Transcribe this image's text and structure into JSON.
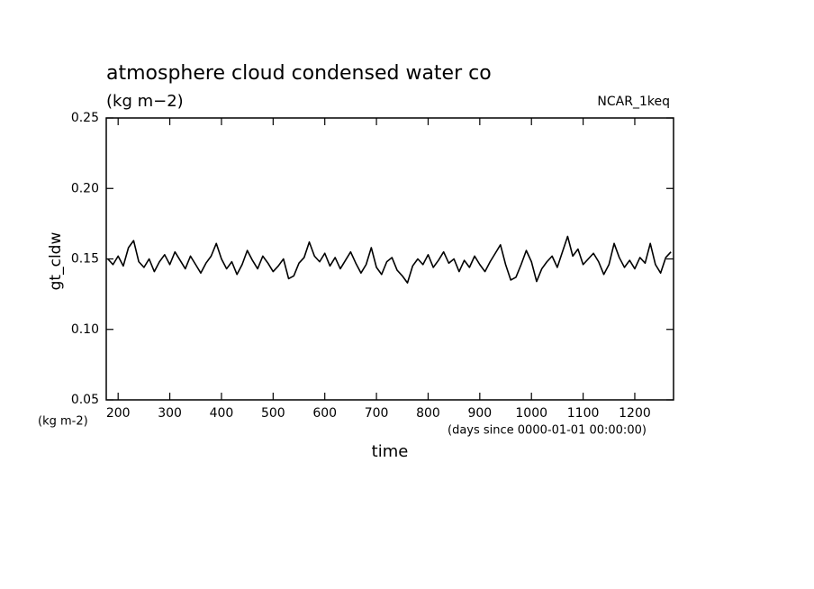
{
  "chart_data": {
    "type": "line",
    "title": "atmosphere cloud condensed water co",
    "subtitle": "(kg m−2)",
    "annotation": "NCAR_1keq",
    "ylabel": "gt_cldw",
    "xlabel": "time",
    "yunits": "(kg m-2)",
    "xunits": "(days since 0000-01-01 00:00:00)",
    "xlim": [
      177,
      1275
    ],
    "ylim": [
      0.05,
      0.25
    ],
    "xticks": [
      200,
      300,
      400,
      500,
      600,
      700,
      800,
      900,
      1000,
      1100,
      1200
    ],
    "yticks": [
      0.05,
      {
        "value": 0.1,
        "label": "0.10"
      },
      0.15,
      {
        "value": 0.2,
        "label": "0.20"
      },
      0.25
    ],
    "x": [
      180,
      190,
      200,
      210,
      220,
      230,
      240,
      250,
      260,
      270,
      280,
      290,
      300,
      310,
      320,
      330,
      340,
      350,
      360,
      370,
      380,
      390,
      400,
      410,
      420,
      430,
      440,
      450,
      460,
      470,
      480,
      490,
      500,
      510,
      520,
      530,
      540,
      550,
      560,
      570,
      580,
      590,
      600,
      610,
      620,
      630,
      640,
      650,
      660,
      670,
      680,
      690,
      700,
      710,
      720,
      730,
      740,
      750,
      760,
      770,
      780,
      790,
      800,
      810,
      820,
      830,
      840,
      850,
      860,
      870,
      880,
      890,
      900,
      910,
      920,
      930,
      940,
      950,
      960,
      970,
      980,
      990,
      1000,
      1010,
      1020,
      1030,
      1040,
      1050,
      1060,
      1070,
      1080,
      1090,
      1100,
      1110,
      1120,
      1130,
      1140,
      1150,
      1160,
      1170,
      1180,
      1190,
      1200,
      1210,
      1220,
      1230,
      1240,
      1250,
      1260,
      1270
    ],
    "series": [
      {
        "color": "#000000",
        "values": [
          0.15,
          0.146,
          0.152,
          0.145,
          0.158,
          0.163,
          0.148,
          0.144,
          0.15,
          0.141,
          0.148,
          0.153,
          0.146,
          0.155,
          0.149,
          0.143,
          0.152,
          0.146,
          0.14,
          0.147,
          0.152,
          0.161,
          0.15,
          0.143,
          0.148,
          0.139,
          0.146,
          0.156,
          0.149,
          0.143,
          0.152,
          0.147,
          0.141,
          0.145,
          0.15,
          0.136,
          0.138,
          0.147,
          0.151,
          0.162,
          0.152,
          0.148,
          0.154,
          0.145,
          0.151,
          0.143,
          0.149,
          0.155,
          0.147,
          0.14,
          0.146,
          0.158,
          0.144,
          0.139,
          0.148,
          0.151,
          0.142,
          0.138,
          0.133,
          0.145,
          0.15,
          0.146,
          0.153,
          0.144,
          0.149,
          0.155,
          0.147,
          0.15,
          0.141,
          0.149,
          0.144,
          0.152,
          0.146,
          0.141,
          0.148,
          0.154,
          0.16,
          0.146,
          0.135,
          0.137,
          0.146,
          0.156,
          0.148,
          0.134,
          0.143,
          0.148,
          0.152,
          0.144,
          0.155,
          0.166,
          0.152,
          0.157,
          0.146,
          0.15,
          0.154,
          0.148,
          0.139,
          0.146,
          0.161,
          0.151,
          0.144,
          0.149,
          0.143,
          0.151,
          0.147,
          0.161,
          0.146,
          0.14,
          0.151,
          0.155
        ]
      }
    ]
  }
}
